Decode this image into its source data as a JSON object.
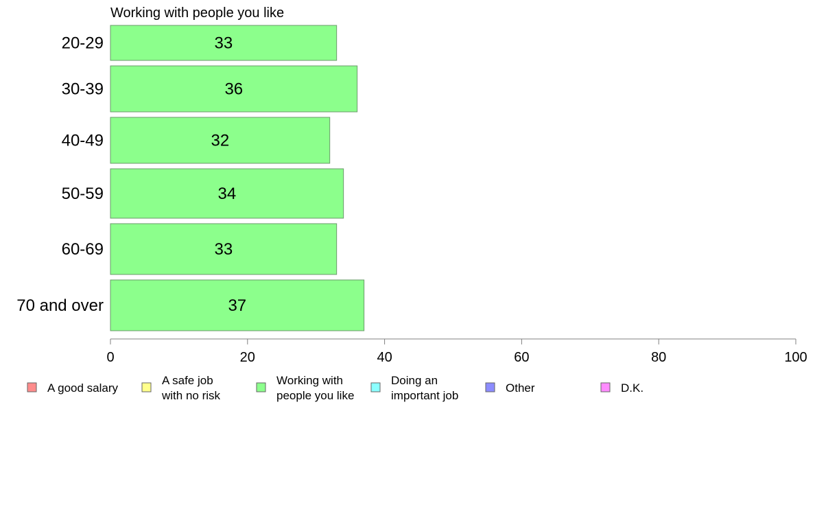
{
  "chart_data": {
    "type": "bar",
    "orientation": "horizontal",
    "title": "Working with people you like",
    "categories": [
      "20-29",
      "30-39",
      "40-49",
      "50-59",
      "60-69",
      "70 and over"
    ],
    "values": [
      33,
      36,
      32,
      34,
      33,
      37
    ],
    "value_labels": [
      "33",
      "36",
      "32",
      "34",
      "33",
      "37"
    ],
    "series_color": "#8cff8c",
    "xlim": [
      0,
      100
    ],
    "xticks": [
      0,
      20,
      40,
      60,
      80,
      100
    ],
    "xtick_labels": [
      "0",
      "20",
      "40",
      "60",
      "80",
      "100"
    ],
    "grid": false,
    "legend_position": "bottom",
    "legend": [
      {
        "lines": [
          "A good salary"
        ],
        "color": "#ff8c8c"
      },
      {
        "lines": [
          "A safe job",
          "with no risk"
        ],
        "color": "#ffff8c"
      },
      {
        "lines": [
          "Working with",
          "people you like"
        ],
        "color": "#8cff8c"
      },
      {
        "lines": [
          "Doing an",
          "important job"
        ],
        "color": "#8cffff"
      },
      {
        "lines": [
          "Other"
        ],
        "color": "#8c8cff"
      },
      {
        "lines": [
          "D.K."
        ],
        "color": "#ff8cff"
      }
    ]
  }
}
